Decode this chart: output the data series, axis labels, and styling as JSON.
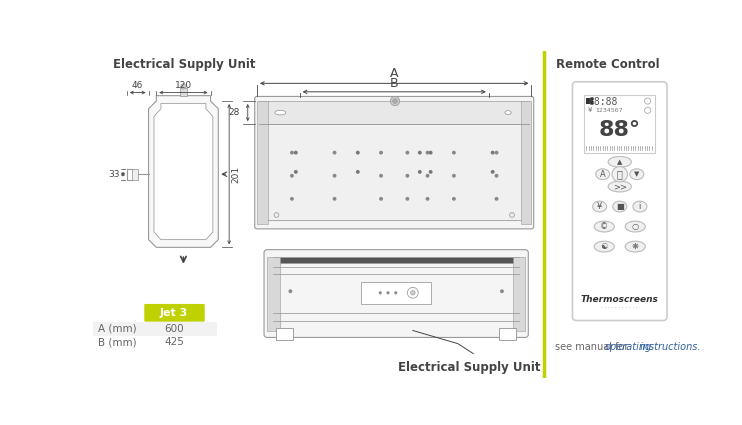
{
  "elec_supply_label": "Electrical Supply Unit",
  "remote_control_label": "Remote Control",
  "elec_supply_label2": "Electrical Supply Unit",
  "see_manual_text1": "see manual for ",
  "see_manual_text2": "operating",
  "see_manual_text3": " instructions.",
  "jet3_label": "Jet 3",
  "jet3_bg": "#bfd100",
  "row1_label": "A (mm)",
  "row1_val": "600",
  "row2_label": "B (mm)",
  "row2_val": "425",
  "table_bg": "#f2f2f2",
  "dim_46": "46",
  "dim_120": "120",
  "dim_33": "33",
  "dim_201": "201",
  "dim_28": "28",
  "dim_A": "A",
  "dim_B": "B",
  "divider_color": "#bfd100",
  "bg_color": "#ffffff",
  "text_color": "#666666",
  "dark_text": "#444444",
  "lc": "#999999",
  "lc2": "#bbbbbb"
}
